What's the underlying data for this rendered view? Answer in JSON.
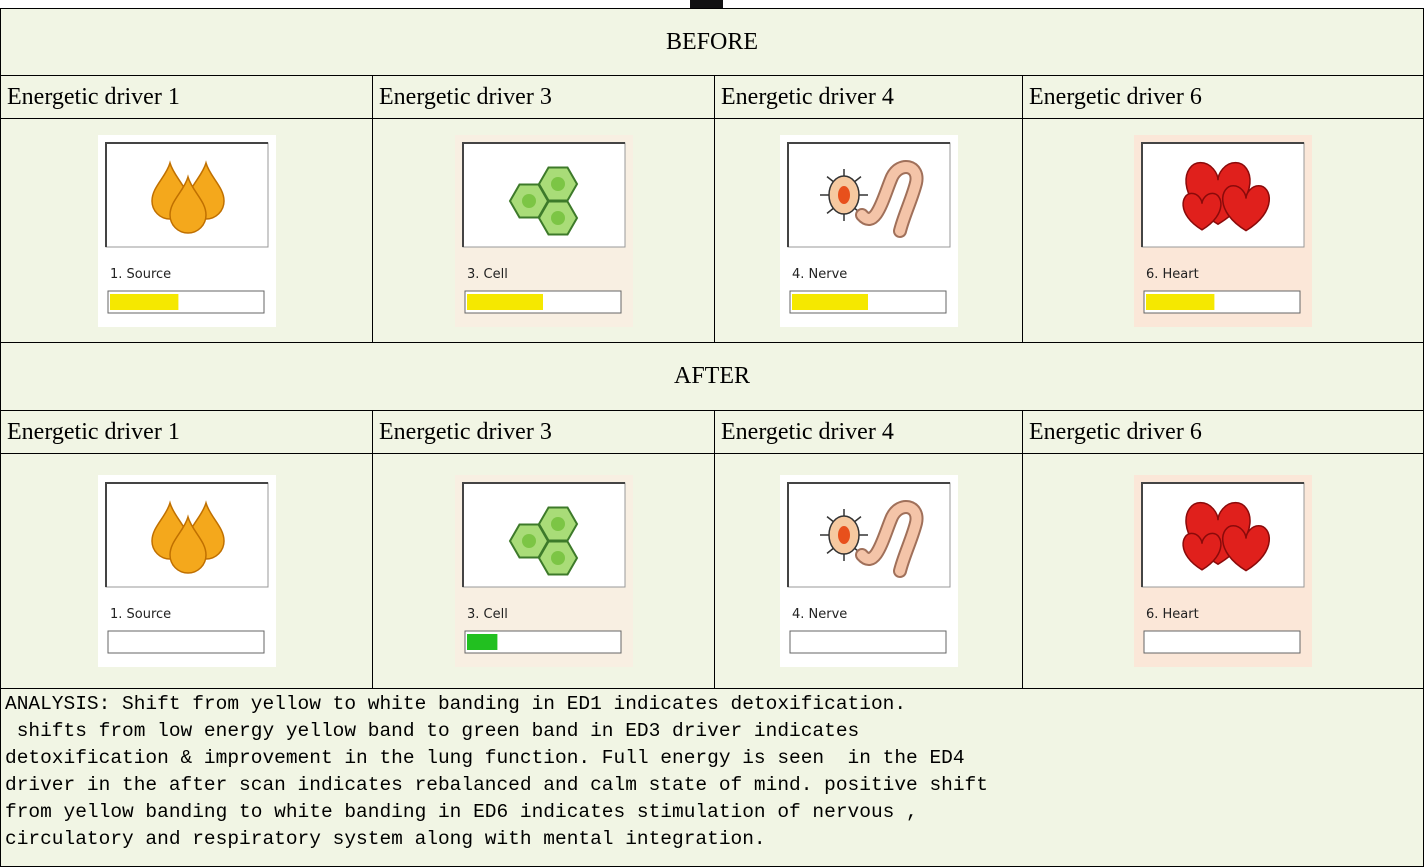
{
  "sections": [
    {
      "title": "BEFORE",
      "headers": [
        "Energetic driver 1",
        "Energetic driver 3",
        "Energetic driver 4",
        "Energetic driver 6"
      ],
      "panels": [
        "1. Source",
        "3. Cell",
        "4. Nerve",
        "6. Heart"
      ]
    },
    {
      "title": "AFTER",
      "headers": [
        "Energetic driver 1",
        "Energetic driver 3",
        "Energetic driver 4",
        "Energetic driver 6"
      ],
      "panels": [
        "1. Source",
        "3. Cell",
        "4. Nerve",
        "6. Heart"
      ]
    }
  ],
  "analysis": [
    "ANALYSIS: Shift from yellow to white banding in ED1 indicates detoxification.",
    " shifts from low energy yellow band to green band in ED3 driver indicates",
    "detoxification & improvement in the lung function. Full energy is seen  in the ED4",
    "driver in the after scan indicates rebalanced and calm state of mind. positive shift",
    "from yellow banding to white banding in ED6 indicates stimulation of nervous ,",
    "circulatory and respiratory system along with mental integration."
  ]
}
